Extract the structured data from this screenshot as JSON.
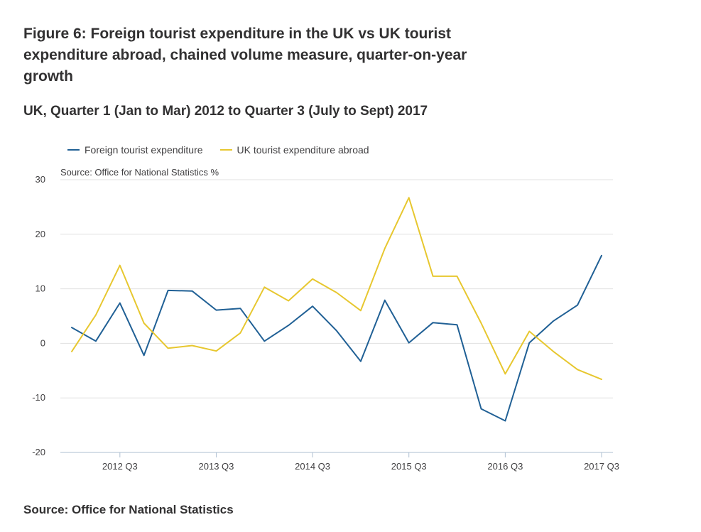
{
  "title": "Figure 6: Foreign tourist expenditure in the UK vs UK tourist expenditure abroad, chained volume measure, quarter-on-year growth",
  "subtitle": "UK, Quarter 1 (Jan to Mar) 2012 to Quarter 3 (July to Sept) 2017",
  "source_footer": "Source: Office for National Statistics",
  "colors": {
    "foreign": "#206095",
    "uk_abroad": "#e7c72f",
    "grid": "#e0e0e0",
    "axis": "#aebfd2"
  },
  "chart_data": {
    "type": "line",
    "axis_note": "Source: Office for National Statistics %",
    "x": [
      "2012 Q1",
      "2012 Q2",
      "2012 Q3",
      "2012 Q4",
      "2013 Q1",
      "2013 Q2",
      "2013 Q3",
      "2013 Q4",
      "2014 Q1",
      "2014 Q2",
      "2014 Q3",
      "2014 Q4",
      "2015 Q1",
      "2015 Q2",
      "2015 Q3",
      "2015 Q4",
      "2016 Q1",
      "2016 Q2",
      "2016 Q3",
      "2016 Q4",
      "2017 Q1",
      "2017 Q2",
      "2017 Q3"
    ],
    "x_tick_labels": [
      "2012 Q3",
      "2013 Q3",
      "2014 Q3",
      "2015 Q3",
      "2016 Q3",
      "2017 Q3"
    ],
    "x_tick_indices": [
      2,
      6,
      10,
      14,
      18,
      22
    ],
    "y_ticks": [
      30,
      20,
      10,
      0,
      -10,
      -20
    ],
    "ylim": [
      -20,
      30
    ],
    "series": [
      {
        "name": "Foreign tourist expenditure",
        "color": "#206095",
        "values": [
          2.9,
          0.4,
          7.4,
          -2.2,
          9.7,
          9.6,
          6.1,
          6.4,
          0.4,
          3.3,
          6.8,
          2.3,
          -3.3,
          7.9,
          0.1,
          3.8,
          3.4,
          -12.0,
          -14.2,
          0.1,
          4.1,
          7.0,
          16.1
        ]
      },
      {
        "name": "UK tourist expenditure abroad",
        "color": "#e7c72f",
        "values": [
          -1.5,
          5.2,
          14.3,
          3.7,
          -0.9,
          -0.4,
          -1.4,
          1.9,
          10.3,
          7.8,
          11.8,
          9.3,
          6.0,
          17.4,
          26.7,
          12.3,
          12.3,
          3.7,
          -5.6,
          2.2,
          -1.5,
          -4.8,
          -6.6
        ]
      }
    ]
  }
}
